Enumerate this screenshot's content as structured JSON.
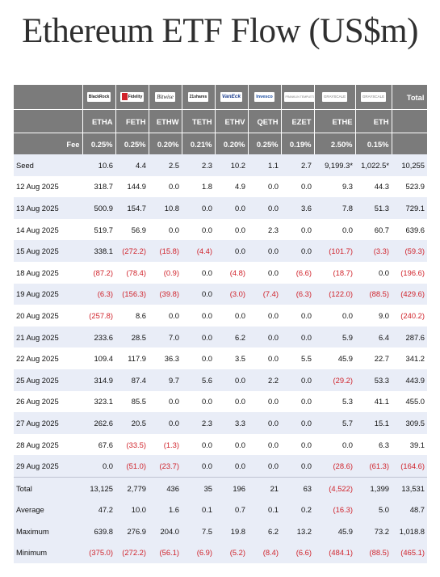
{
  "title": "Ethereum ETF Flow (US$m)",
  "issuers": [
    "BlackRock",
    "Fidelity",
    "Bitwise",
    "21shares",
    "VanEck",
    "Invesco",
    "FRANKLIN TEMPLETON",
    "GRAYSCALE",
    "GRAYSCALE"
  ],
  "total_header": "Total",
  "tickers": [
    "ETHA",
    "FETH",
    "ETHW",
    "TETH",
    "ETHV",
    "QETH",
    "EZET",
    "ETHE",
    "ETH"
  ],
  "fee_label": "Fee",
  "fees": [
    "0.25%",
    "0.25%",
    "0.20%",
    "0.21%",
    "0.20%",
    "0.25%",
    "0.19%",
    "2.50%",
    "0.15%"
  ],
  "rows": [
    {
      "label": "Seed",
      "values": [
        "10.6",
        "4.4",
        "2.5",
        "2.3",
        "10.2",
        "1.1",
        "2.7",
        "9,199.3*",
        "1,022.5*",
        "10,255"
      ]
    },
    {
      "label": "12 Aug 2025",
      "values": [
        "318.7",
        "144.9",
        "0.0",
        "1.8",
        "4.9",
        "0.0",
        "0.0",
        "9.3",
        "44.3",
        "523.9"
      ]
    },
    {
      "label": "13 Aug 2025",
      "values": [
        "500.9",
        "154.7",
        "10.8",
        "0.0",
        "0.0",
        "0.0",
        "3.6",
        "7.8",
        "51.3",
        "729.1"
      ]
    },
    {
      "label": "14 Aug 2025",
      "values": [
        "519.7",
        "56.9",
        "0.0",
        "0.0",
        "0.0",
        "2.3",
        "0.0",
        "0.0",
        "60.7",
        "639.6"
      ]
    },
    {
      "label": "15 Aug 2025",
      "values": [
        "338.1",
        "(272.2)",
        "(15.8)",
        "(4.4)",
        "0.0",
        "0.0",
        "0.0",
        "(101.7)",
        "(3.3)",
        "(59.3)"
      ]
    },
    {
      "label": "18 Aug 2025",
      "values": [
        "(87.2)",
        "(78.4)",
        "(0.9)",
        "0.0",
        "(4.8)",
        "0.0",
        "(6.6)",
        "(18.7)",
        "0.0",
        "(196.6)"
      ]
    },
    {
      "label": "19 Aug 2025",
      "values": [
        "(6.3)",
        "(156.3)",
        "(39.8)",
        "0.0",
        "(3.0)",
        "(7.4)",
        "(6.3)",
        "(122.0)",
        "(88.5)",
        "(429.6)"
      ]
    },
    {
      "label": "20 Aug 2025",
      "values": [
        "(257.8)",
        "8.6",
        "0.0",
        "0.0",
        "0.0",
        "0.0",
        "0.0",
        "0.0",
        "9.0",
        "(240.2)"
      ]
    },
    {
      "label": "21 Aug 2025",
      "values": [
        "233.6",
        "28.5",
        "7.0",
        "0.0",
        "6.2",
        "0.0",
        "0.0",
        "5.9",
        "6.4",
        "287.6"
      ]
    },
    {
      "label": "22 Aug 2025",
      "values": [
        "109.4",
        "117.9",
        "36.3",
        "0.0",
        "3.5",
        "0.0",
        "5.5",
        "45.9",
        "22.7",
        "341.2"
      ]
    },
    {
      "label": "25 Aug 2025",
      "values": [
        "314.9",
        "87.4",
        "9.7",
        "5.6",
        "0.0",
        "2.2",
        "0.0",
        "(29.2)",
        "53.3",
        "443.9"
      ]
    },
    {
      "label": "26 Aug 2025",
      "values": [
        "323.1",
        "85.5",
        "0.0",
        "0.0",
        "0.0",
        "0.0",
        "0.0",
        "5.3",
        "41.1",
        "455.0"
      ]
    },
    {
      "label": "27 Aug 2025",
      "values": [
        "262.6",
        "20.5",
        "0.0",
        "2.3",
        "3.3",
        "0.0",
        "0.0",
        "5.7",
        "15.1",
        "309.5"
      ]
    },
    {
      "label": "28 Aug 2025",
      "values": [
        "67.6",
        "(33.5)",
        "(1.3)",
        "0.0",
        "0.0",
        "0.0",
        "0.0",
        "0.0",
        "6.3",
        "39.1"
      ]
    },
    {
      "label": "29 Aug 2025",
      "values": [
        "0.0",
        "(51.0)",
        "(23.7)",
        "0.0",
        "0.0",
        "0.0",
        "0.0",
        "(28.6)",
        "(61.3)",
        "(164.6)"
      ]
    }
  ],
  "summary": [
    {
      "label": "Total",
      "values": [
        "13,125",
        "2,779",
        "436",
        "35",
        "196",
        "21",
        "63",
        "(4,522)",
        "1,399",
        "13,531"
      ]
    },
    {
      "label": "Average",
      "values": [
        "47.2",
        "10.0",
        "1.6",
        "0.1",
        "0.7",
        "0.1",
        "0.2",
        "(16.3)",
        "5.0",
        "48.7"
      ]
    },
    {
      "label": "Maximum",
      "values": [
        "639.8",
        "276.9",
        "204.0",
        "7.5",
        "19.8",
        "6.2",
        "13.2",
        "45.9",
        "73.2",
        "1,018.8"
      ]
    },
    {
      "label": "Minimum",
      "values": [
        "(375.0)",
        "(272.2)",
        "(56.1)",
        "(6.9)",
        "(5.2)",
        "(8.4)",
        "(6.6)",
        "(484.1)",
        "(88.5)",
        "(465.1)"
      ]
    }
  ],
  "colors": {
    "header_bg": "#7b7b7b",
    "band_bg": "#e9edf7",
    "negative": "#d0232b",
    "title": "#2f2f2f"
  }
}
